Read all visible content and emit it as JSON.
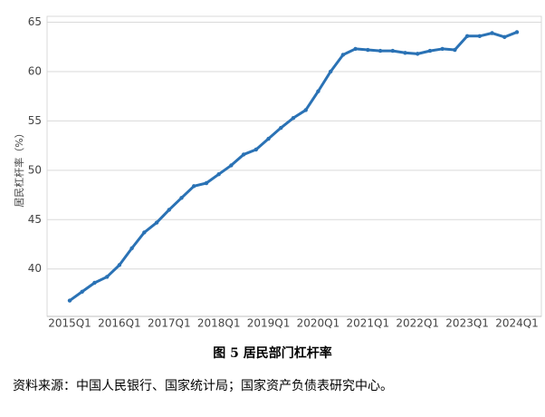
{
  "chart_data": {
    "type": "line",
    "y_label": "居民杠杆率（%）",
    "caption": "图 5 居民部门杠杆率",
    "source": "资料来源：中国人民银行、国家统计局；国家资产负债表研究中心。",
    "categories": [
      "2015Q1",
      null,
      null,
      null,
      "2016Q1",
      null,
      null,
      null,
      "2017Q1",
      null,
      null,
      null,
      "2018Q1",
      null,
      null,
      null,
      "2019Q1",
      null,
      null,
      null,
      "2020Q1",
      null,
      null,
      null,
      "2021Q1",
      null,
      null,
      null,
      "2022Q1",
      null,
      null,
      null,
      "2023Q1",
      null,
      null,
      null,
      "2024Q1"
    ],
    "series": [
      {
        "name": "居民杠杆率",
        "color": "#2a72b5",
        "values": [
          36.8,
          37.7,
          38.6,
          39.2,
          40.4,
          42.1,
          43.7,
          44.7,
          46.0,
          47.2,
          48.4,
          48.7,
          49.6,
          50.5,
          51.6,
          52.1,
          53.2,
          54.3,
          55.3,
          56.1,
          58.0,
          60.0,
          61.7,
          62.3,
          62.2,
          62.1,
          62.1,
          61.9,
          61.8,
          62.1,
          62.3,
          62.2,
          63.6,
          63.6,
          63.9,
          63.5,
          64.0
        ]
      }
    ],
    "ylim": [
      35.2,
      65.6
    ],
    "yticks": [
      40,
      45,
      50,
      55,
      60,
      65
    ],
    "grid": true
  }
}
